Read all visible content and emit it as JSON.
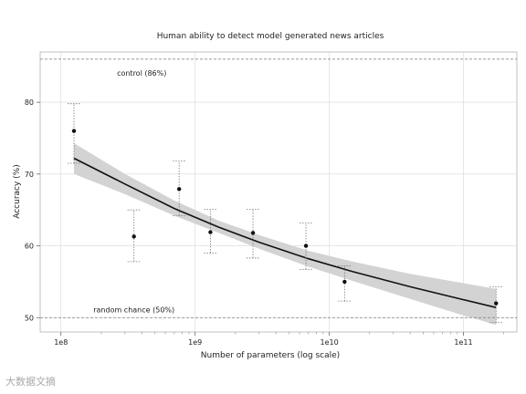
{
  "chart_data": {
    "type": "scatter",
    "title": "Human ability to detect model generated news articles",
    "xlabel": "Number of parameters (log scale)",
    "ylabel": "Accuracy (%)",
    "x_scale": "log",
    "xlim": [
      70000000,
      250000000000
    ],
    "ylim": [
      48,
      87
    ],
    "x_ticks": [
      100000000,
      1000000000,
      10000000000,
      100000000000
    ],
    "x_tick_labels": [
      "1e8",
      "1e9",
      "1e10",
      "1e11"
    ],
    "y_ticks": [
      50,
      60,
      70,
      80
    ],
    "y_tick_labels": [
      "50",
      "60",
      "70",
      "80"
    ],
    "grid": true,
    "points": [
      {
        "x": 125000000,
        "y": 76,
        "err_low": 71.5,
        "err_high": 79.8
      },
      {
        "x": 350000000,
        "y": 61.3,
        "err_low": 57.8,
        "err_high": 65
      },
      {
        "x": 760000000,
        "y": 67.9,
        "err_low": 64.2,
        "err_high": 71.8
      },
      {
        "x": 1300000000,
        "y": 61.9,
        "err_low": 59,
        "err_high": 65.1
      },
      {
        "x": 2700000000,
        "y": 61.8,
        "err_low": 58.3,
        "err_high": 65.1
      },
      {
        "x": 6700000000,
        "y": 60,
        "err_low": 56.7,
        "err_high": 63.2
      },
      {
        "x": 13000000000,
        "y": 55,
        "err_low": 52.3,
        "err_high": 57.2
      },
      {
        "x": 175000000000,
        "y": 52,
        "err_low": 49.3,
        "err_high": 54.3
      }
    ],
    "fit": {
      "x": [
        125000000,
        300000000,
        700000000,
        1500000000,
        3000000000,
        7000000000,
        15000000000,
        40000000000,
        100000000000,
        175000000000
      ],
      "y": [
        72.2,
        68.6,
        65.2,
        62.6,
        60.5,
        58.2,
        56.4,
        54.3,
        52.5,
        51.4
      ],
      "band_low": [
        70,
        67.2,
        64.2,
        61.8,
        59.6,
        57.1,
        55.1,
        52.6,
        50.3,
        49
      ],
      "band_high": [
        74.3,
        70,
        66.3,
        63.5,
        61.5,
        59.3,
        57.8,
        56.1,
        54.8,
        54
      ]
    },
    "reference_lines": [
      {
        "y": 86,
        "label": "control (86%)"
      },
      {
        "y": 50,
        "label": "random chance (50%)"
      }
    ],
    "colors": {
      "point": "#111111",
      "fit_line": "#111111",
      "band": "#d3d3d3",
      "grid": "#d8d8d8",
      "reference": "#777777",
      "errorbar": "#777777"
    }
  },
  "watermark": {
    "text": "大数据文摘"
  }
}
